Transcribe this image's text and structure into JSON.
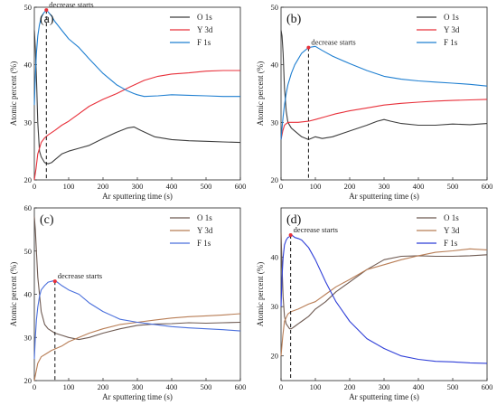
{
  "colors": {
    "O": "#3d3d3d",
    "Y": "#e8313b",
    "F": "#1f7fd1"
  },
  "chart_data": [
    {
      "type": "line",
      "panel_label": "(a)",
      "xlabel": "Ar sputtering time (s)",
      "ylabel": "Atomic percent (%)",
      "xlim": [
        0,
        600
      ],
      "ylim": [
        20,
        50
      ],
      "xticks": [
        0,
        100,
        200,
        300,
        400,
        500,
        600
      ],
      "yticks": [
        20,
        30,
        40,
        50
      ],
      "annotation": {
        "text": "decrease starts",
        "x": 35,
        "y": 49.5
      },
      "legend_position": "top-right",
      "colors": [
        "#3d3d3d",
        "#e8313b",
        "#1f7fd1"
      ],
      "series": [
        {
          "name": "O 1s",
          "x": [
            0,
            3,
            6,
            10,
            15,
            20,
            30,
            40,
            50,
            60,
            80,
            100,
            130,
            160,
            200,
            240,
            270,
            290,
            310,
            350,
            400,
            450,
            500,
            550,
            600
          ],
          "y": [
            46,
            43,
            38,
            30,
            25,
            24,
            23,
            22.8,
            23,
            23.5,
            24.5,
            25,
            25.5,
            26,
            27.2,
            28.3,
            29,
            29.2,
            28.6,
            27.5,
            27,
            26.8,
            26.7,
            26.6,
            26.5
          ]
        },
        {
          "name": "Y 3d",
          "x": [
            0,
            5,
            10,
            20,
            30,
            40,
            60,
            80,
            100,
            130,
            160,
            200,
            240,
            280,
            320,
            360,
            400,
            450,
            500,
            550,
            600
          ],
          "y": [
            20,
            22,
            24.5,
            26.5,
            27.3,
            27.8,
            28.6,
            29.5,
            30.2,
            31.5,
            32.8,
            34,
            35,
            36.2,
            37.3,
            38,
            38.4,
            38.6,
            38.9,
            39,
            39
          ]
        },
        {
          "name": "F 1s",
          "x": [
            0,
            3,
            6,
            10,
            15,
            20,
            25,
            30,
            35,
            40,
            50,
            60,
            80,
            100,
            130,
            160,
            200,
            240,
            270,
            290,
            300,
            320,
            360,
            400,
            450,
            500,
            550,
            600
          ],
          "y": [
            33,
            38,
            42,
            45,
            47,
            48.2,
            48.8,
            49.2,
            49.5,
            49.2,
            48.5,
            47.5,
            46,
            44.5,
            43,
            41,
            38.5,
            36.5,
            35.5,
            35,
            34.8,
            34.5,
            34.6,
            34.8,
            34.7,
            34.6,
            34.5,
            34.5
          ]
        }
      ]
    },
    {
      "type": "line",
      "panel_label": "(b)",
      "xlabel": "Ar sputtering time (s)",
      "ylabel": "Atomic percent (%)",
      "xlim": [
        0,
        600
      ],
      "ylim": [
        20,
        50
      ],
      "xticks": [
        0,
        100,
        200,
        300,
        400,
        500,
        600
      ],
      "yticks": [
        20,
        30,
        40,
        50
      ],
      "annotation": {
        "text": "decrease starts",
        "x": 80,
        "y": 43
      },
      "legend_position": "top-right",
      "colors": [
        "#3d3d3d",
        "#e8313b",
        "#1f7fd1"
      ],
      "series": [
        {
          "name": "O 1s",
          "x": [
            0,
            3,
            6,
            10,
            15,
            20,
            30,
            40,
            60,
            80,
            100,
            120,
            150,
            200,
            250,
            280,
            300,
            320,
            350,
            400,
            450,
            500,
            550,
            600
          ],
          "y": [
            46,
            45,
            42,
            36,
            32,
            30,
            29,
            28.5,
            27.5,
            27,
            27.5,
            27.2,
            27.5,
            28.5,
            29.5,
            30.2,
            30.5,
            30.2,
            29.8,
            29.5,
            29.5,
            29.7,
            29.6,
            29.8
          ]
        },
        {
          "name": "Y 3d",
          "x": [
            0,
            5,
            10,
            20,
            30,
            50,
            80,
            100,
            130,
            160,
            200,
            250,
            300,
            350,
            400,
            450,
            500,
            550,
            600
          ],
          "y": [
            27,
            28.5,
            29.5,
            30,
            30,
            30,
            30.2,
            30.5,
            31,
            31.5,
            32,
            32.5,
            33,
            33.3,
            33.5,
            33.7,
            33.8,
            33.9,
            34
          ]
        },
        {
          "name": "F 1s",
          "x": [
            0,
            3,
            6,
            10,
            15,
            20,
            30,
            40,
            50,
            60,
            80,
            100,
            120,
            150,
            200,
            250,
            300,
            350,
            400,
            450,
            500,
            550,
            600
          ],
          "y": [
            27,
            29,
            31,
            33,
            35,
            36.5,
            38.5,
            40,
            41,
            42,
            43,
            43.2,
            42.5,
            41.5,
            40.2,
            39,
            38,
            37.5,
            37.2,
            37,
            36.8,
            36.6,
            36.3
          ]
        }
      ]
    },
    {
      "type": "line",
      "panel_label": "(c)",
      "xlabel": "Ar sputtering time (s)",
      "ylabel": "Atomic percent (%)",
      "xlim": [
        0,
        600
      ],
      "ylim": [
        20,
        60
      ],
      "xticks": [
        0,
        100,
        200,
        300,
        400,
        500,
        600
      ],
      "yticks": [
        20,
        30,
        40,
        50,
        60
      ],
      "annotation": {
        "text": "decrease starts",
        "x": 60,
        "y": 43
      },
      "legend_position": "top-right",
      "colors": [
        "#6e5a52",
        "#b87d55",
        "#4a6fdc"
      ],
      "series": [
        {
          "name": "O 1s",
          "x": [
            0,
            3,
            6,
            10,
            15,
            20,
            30,
            40,
            60,
            80,
            100,
            130,
            160,
            200,
            250,
            300,
            350,
            400,
            450,
            500,
            550,
            600
          ],
          "y": [
            58,
            55,
            50,
            44,
            40,
            36,
            33,
            32,
            31,
            30.5,
            30,
            29.5,
            30,
            31,
            32,
            32.8,
            33.1,
            33.2,
            33.4,
            33.3,
            33.4,
            33.5
          ]
        },
        {
          "name": "Y 3d",
          "x": [
            0,
            5,
            10,
            20,
            30,
            50,
            80,
            100,
            130,
            160,
            200,
            250,
            300,
            350,
            400,
            450,
            500,
            550,
            600
          ],
          "y": [
            20,
            22,
            24,
            25.5,
            26,
            27,
            28,
            29,
            30,
            31,
            32,
            33,
            33.5,
            34,
            34.5,
            34.8,
            35,
            35.2,
            35.5
          ]
        },
        {
          "name": "F 1s",
          "x": [
            0,
            3,
            6,
            10,
            15,
            20,
            30,
            40,
            50,
            60,
            80,
            100,
            130,
            160,
            200,
            250,
            300,
            350,
            400,
            450,
            500,
            550,
            600
          ],
          "y": [
            25,
            30,
            34,
            37,
            39.5,
            41,
            42,
            42.8,
            43,
            43.2,
            42,
            41,
            40,
            38,
            36,
            34.2,
            33.5,
            33,
            32.5,
            32.2,
            32,
            31.8,
            31.5
          ]
        }
      ]
    },
    {
      "type": "line",
      "panel_label": "(d)",
      "xlabel": "Ar sputtering time (s)",
      "ylabel": "Atomic percent (%)",
      "xlim": [
        0,
        600
      ],
      "ylim": [
        15,
        50
      ],
      "xticks": [
        0,
        100,
        200,
        300,
        400,
        500,
        600
      ],
      "yticks": [
        20,
        30,
        40
      ],
      "annotation": {
        "text": "decrease starts",
        "x": 28,
        "y": 44.5
      },
      "legend_position": "top-right",
      "colors": [
        "#6e5a52",
        "#b87d55",
        "#2f3fd8"
      ],
      "series": [
        {
          "name": "O 1s",
          "x": [
            0,
            3,
            6,
            10,
            15,
            20,
            25,
            30,
            40,
            50,
            60,
            80,
            100,
            130,
            160,
            200,
            250,
            300,
            350,
            400,
            450,
            500,
            550,
            600
          ],
          "y": [
            45,
            38,
            32,
            28,
            26.5,
            26,
            25.5,
            25.5,
            26,
            26.5,
            27,
            28,
            29.5,
            31,
            33,
            35,
            37.5,
            39.5,
            40.2,
            40.3,
            40.2,
            40.2,
            40.3,
            40.5
          ]
        },
        {
          "name": "Y 3d",
          "x": [
            0,
            5,
            10,
            20,
            30,
            50,
            80,
            100,
            130,
            160,
            200,
            250,
            300,
            350,
            400,
            450,
            500,
            550,
            600
          ],
          "y": [
            20,
            24,
            27,
            28.5,
            29,
            29.5,
            30.5,
            31,
            32.5,
            34,
            35.5,
            37.5,
            38.5,
            39.5,
            40.3,
            41,
            41.3,
            41.7,
            41.5
          ]
        },
        {
          "name": "F 1s",
          "x": [
            0,
            3,
            6,
            10,
            15,
            20,
            25,
            30,
            35,
            40,
            50,
            60,
            80,
            100,
            130,
            160,
            200,
            250,
            300,
            350,
            400,
            450,
            500,
            550,
            600
          ],
          "y": [
            30,
            36,
            40,
            42.5,
            43.5,
            44,
            44.2,
            44.5,
            44.3,
            44,
            43.8,
            43.5,
            42,
            39.5,
            35,
            31,
            27,
            23.5,
            21.5,
            20,
            19.3,
            18.9,
            18.8,
            18.6,
            18.5
          ]
        }
      ]
    }
  ]
}
